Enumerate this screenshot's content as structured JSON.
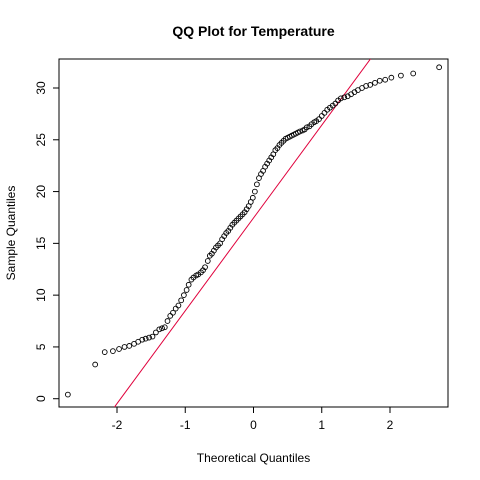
{
  "chart_data": {
    "type": "scatter",
    "title": "QQ Plot for Temperature",
    "xlabel": "Theoretical Quantiles",
    "ylabel": "Sample Quantiles",
    "xlim": [
      -2.85,
      2.85
    ],
    "ylim": [
      -0.8,
      32.8
    ],
    "xticks": [
      -2,
      -1,
      0,
      1,
      2
    ],
    "yticks": [
      0,
      5,
      10,
      15,
      20,
      25,
      30
    ],
    "grid": false,
    "point_color": "#000000",
    "reference_line": {
      "color": "#e0003c",
      "intercept": 17.45,
      "slope": 8.96
    },
    "x": [
      -2.72,
      -2.32,
      -2.18,
      -2.06,
      -1.97,
      -1.89,
      -1.82,
      -1.75,
      -1.69,
      -1.63,
      -1.58,
      -1.53,
      -1.48,
      -1.43,
      -1.38,
      -1.34,
      -1.3,
      -1.26,
      -1.22,
      -1.18,
      -1.14,
      -1.1,
      -1.06,
      -1.02,
      -0.98,
      -0.95,
      -0.91,
      -0.88,
      -0.84,
      -0.81,
      -0.77,
      -0.74,
      -0.71,
      -0.67,
      -0.64,
      -0.61,
      -0.58,
      -0.55,
      -0.52,
      -0.49,
      -0.46,
      -0.43,
      -0.4,
      -0.37,
      -0.34,
      -0.31,
      -0.28,
      -0.25,
      -0.22,
      -0.19,
      -0.16,
      -0.13,
      -0.1,
      -0.07,
      -0.04,
      -0.01,
      0.02,
      0.05,
      0.08,
      0.11,
      0.14,
      0.17,
      0.2,
      0.23,
      0.26,
      0.29,
      0.32,
      0.35,
      0.38,
      0.41,
      0.44,
      0.47,
      0.5,
      0.53,
      0.56,
      0.59,
      0.62,
      0.65,
      0.68,
      0.72,
      0.75,
      0.78,
      0.82,
      0.85,
      0.89,
      0.92,
      0.96,
      1.0,
      1.04,
      1.08,
      1.12,
      1.16,
      1.2,
      1.24,
      1.28,
      1.33,
      1.38,
      1.43,
      1.48,
      1.53,
      1.59,
      1.65,
      1.71,
      1.78,
      1.85,
      1.93,
      2.02,
      2.16,
      2.34,
      2.72
    ],
    "y": [
      0.4,
      3.3,
      4.5,
      4.6,
      4.8,
      5.0,
      5.1,
      5.3,
      5.5,
      5.7,
      5.8,
      5.9,
      6.0,
      6.4,
      6.7,
      6.8,
      6.9,
      7.5,
      8.0,
      8.3,
      8.7,
      9.0,
      9.5,
      10.0,
      10.5,
      11.0,
      11.5,
      11.7,
      11.9,
      12.0,
      12.2,
      12.4,
      12.7,
      13.3,
      13.8,
      14.0,
      14.3,
      14.6,
      14.8,
      15.0,
      15.4,
      15.7,
      16.0,
      16.2,
      16.5,
      16.8,
      17.0,
      17.2,
      17.4,
      17.6,
      17.8,
      18.0,
      18.3,
      18.6,
      19.0,
      19.4,
      20.0,
      20.7,
      21.3,
      21.7,
      22.0,
      22.4,
      22.7,
      23.0,
      23.3,
      23.6,
      24.0,
      24.2,
      24.5,
      24.7,
      24.9,
      25.1,
      25.2,
      25.3,
      25.4,
      25.5,
      25.6,
      25.7,
      25.8,
      25.9,
      26.0,
      26.2,
      26.3,
      26.5,
      26.7,
      26.8,
      27.0,
      27.3,
      27.6,
      27.9,
      28.1,
      28.3,
      28.5,
      28.8,
      29.0,
      29.1,
      29.2,
      29.4,
      29.6,
      29.8,
      30.0,
      30.2,
      30.3,
      30.5,
      30.7,
      30.8,
      31.0,
      31.2,
      31.4,
      32.0
    ]
  }
}
